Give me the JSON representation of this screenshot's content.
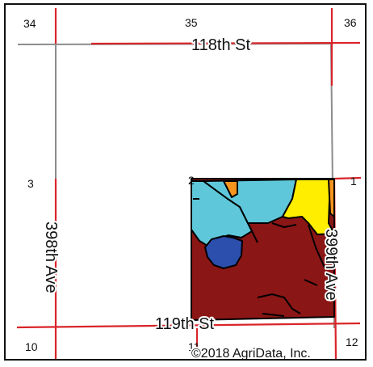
{
  "sections": {
    "s34": "34",
    "s35": "35",
    "s36": "36",
    "s3": "3",
    "s2": "2",
    "s1": "1",
    "s10": "10",
    "s11": "11",
    "s12": "12"
  },
  "roads": {
    "top_street": "118th St",
    "bottom_street": "119th St",
    "left_avenue": "398th Ave",
    "right_avenue": "399th Ave"
  },
  "copyright": "©2018 AgriData, Inc.",
  "colors": {
    "section_line": "#d9252a",
    "road_line": "#8c8c8c",
    "soil_dark_red": "#8b1616",
    "soil_light_blue": "#5ec8da",
    "soil_yellow": "#ffee00",
    "soil_navy": "#2c4fae",
    "soil_orange": "#f7941d",
    "boundary": "#000000"
  }
}
